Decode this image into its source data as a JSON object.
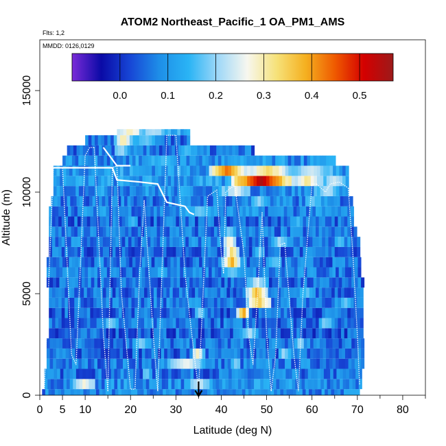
{
  "chart_data": {
    "type": "heatmap",
    "title": "ATOM2 Northeast_Pacific_1 OA_PM1_AMS",
    "flights_label": "Flts: 1,2",
    "dates_label": "MMDD: 0126,0129",
    "xlabel": "Latitude (deg N)",
    "ylabel": "Altitude (m)",
    "xlim": [
      0,
      85
    ],
    "ylim": [
      0,
      17500
    ],
    "x_ticks": [
      0,
      5,
      10,
      20,
      30,
      40,
      50,
      60,
      70,
      80
    ],
    "y_ticks": [
      0,
      5000,
      10000,
      15000
    ],
    "colorbar": {
      "range": [
        -0.1,
        0.57
      ],
      "ticks": [
        0.0,
        0.1,
        0.2,
        0.3,
        0.4,
        0.5
      ],
      "tick_labels": [
        "0.0",
        "0.1",
        "0.2",
        "0.3",
        "0.4",
        "0.5"
      ],
      "colors": [
        "#7a2bd8",
        "#0a0aa6",
        "#1747d6",
        "#1e8fe8",
        "#2ab4f5",
        "#9fd8f8",
        "#f7f7ef",
        "#f6e27a",
        "#f5b020",
        "#ef5a00",
        "#d40000",
        "#9c1a1a"
      ]
    },
    "marker_latitude": 35,
    "rows": [
      {
        "y0": 0,
        "y1": 300,
        "x0": 0.5,
        "x1": 70,
        "base": 0.08,
        "hot": []
      },
      {
        "y0": 300,
        "y1": 800,
        "x0": 1,
        "x1": 71,
        "base": 0.09,
        "hot": [
          [
            7,
            12,
            0.28
          ],
          [
            33,
            37,
            0.24
          ]
        ]
      },
      {
        "y0": 800,
        "y1": 1300,
        "x0": 1,
        "x1": 71,
        "base": 0.06,
        "hot": [
          [
            22,
            24,
            0.2
          ]
        ]
      },
      {
        "y0": 1300,
        "y1": 1800,
        "x0": 1.5,
        "x1": 71.5,
        "base": 0.07,
        "hot": [
          [
            28,
            36,
            0.27
          ],
          [
            42,
            44,
            0.2
          ]
        ]
      },
      {
        "y0": 1800,
        "y1": 2300,
        "x0": 1.5,
        "x1": 71.5,
        "base": 0.05,
        "hot": [
          [
            33,
            36,
            0.3
          ],
          [
            52,
            55,
            0.22
          ]
        ]
      },
      {
        "y0": 2300,
        "y1": 2800,
        "x0": 1.5,
        "x1": 71.5,
        "base": 0.06,
        "hot": [
          [
            20,
            24,
            0.2
          ],
          [
            56,
            58,
            0.22
          ]
        ]
      },
      {
        "y0": 2800,
        "y1": 3300,
        "x0": 2,
        "x1": 71,
        "base": 0.04,
        "hot": [
          [
            44,
            48,
            0.22
          ]
        ]
      },
      {
        "y0": 3300,
        "y1": 3800,
        "x0": 2,
        "x1": 71,
        "base": 0.06,
        "hot": [
          [
            14,
            17,
            0.2
          ],
          [
            61,
            64,
            0.2
          ]
        ]
      },
      {
        "y0": 3800,
        "y1": 4300,
        "x0": 2,
        "x1": 71,
        "base": 0.05,
        "hot": [
          [
            43,
            46,
            0.42
          ],
          [
            34,
            36,
            0.2
          ]
        ]
      },
      {
        "y0": 4300,
        "y1": 4800,
        "x0": 2,
        "x1": 71,
        "base": 0.07,
        "hot": [
          [
            45,
            51,
            0.36
          ],
          [
            66,
            68,
            0.18
          ]
        ]
      },
      {
        "y0": 4800,
        "y1": 5300,
        "x0": 2,
        "x1": 71,
        "base": 0.06,
        "hot": [
          [
            45,
            50,
            0.38
          ],
          [
            57,
            60,
            0.18
          ]
        ]
      },
      {
        "y0": 5300,
        "y1": 5800,
        "x0": 1.5,
        "x1": 71,
        "base": 0.05,
        "hot": [
          [
            45,
            50,
            0.24
          ]
        ]
      },
      {
        "y0": 5800,
        "y1": 6300,
        "x0": 1.5,
        "x1": 70.5,
        "base": 0.07,
        "hot": [
          [
            40,
            44,
            0.18
          ],
          [
            25,
            28,
            0.16
          ]
        ]
      },
      {
        "y0": 6300,
        "y1": 6800,
        "x0": 1.5,
        "x1": 70.5,
        "base": 0.06,
        "hot": [
          [
            40,
            44,
            0.4
          ],
          [
            50,
            53,
            0.18
          ]
        ]
      },
      {
        "y0": 6800,
        "y1": 7300,
        "x0": 2,
        "x1": 70,
        "base": 0.05,
        "hot": [
          [
            40,
            44,
            0.34
          ],
          [
            47,
            49,
            0.2
          ]
        ]
      },
      {
        "y0": 7300,
        "y1": 7800,
        "x0": 2,
        "x1": 70,
        "base": 0.07,
        "hot": [
          [
            40,
            43,
            0.3
          ],
          [
            51,
            54,
            0.22
          ],
          [
            65,
            67,
            0.18
          ]
        ]
      },
      {
        "y0": 7800,
        "y1": 8300,
        "x0": 2,
        "x1": 69.5,
        "base": 0.06,
        "hot": [
          [
            40,
            43,
            0.2
          ]
        ]
      },
      {
        "y0": 8300,
        "y1": 8800,
        "x0": 2,
        "x1": 69,
        "base": 0.05,
        "hot": [
          [
            19,
            21,
            0.16
          ],
          [
            55,
            58,
            0.16
          ]
        ]
      },
      {
        "y0": 8800,
        "y1": 9300,
        "x0": 2,
        "x1": 69,
        "base": 0.08,
        "hot": [
          [
            32,
            38,
            0.18
          ]
        ]
      },
      {
        "y0": 9300,
        "y1": 9800,
        "x0": 2.5,
        "x1": 68.5,
        "base": 0.07,
        "hot": [
          [
            46,
            50,
            0.2
          ],
          [
            58,
            62,
            0.18
          ]
        ]
      },
      {
        "y0": 9800,
        "y1": 10300,
        "x0": 3,
        "x1": 68,
        "base": 0.09,
        "hot": [
          [
            40,
            46,
            0.26
          ],
          [
            60,
            66,
            0.22
          ]
        ]
      },
      {
        "y0": 10300,
        "y1": 10800,
        "x0": 3,
        "x1": 67.5,
        "base": 0.1,
        "hot": [
          [
            42,
            55,
            0.55
          ],
          [
            55,
            62,
            0.32
          ],
          [
            62,
            67,
            0.24
          ]
        ]
      },
      {
        "y0": 10800,
        "y1": 11300,
        "x0": 3,
        "x1": 67.5,
        "base": 0.11,
        "hot": [
          [
            37,
            45,
            0.44
          ],
          [
            45,
            55,
            0.34
          ],
          [
            55,
            64,
            0.24
          ]
        ]
      },
      {
        "y0": 11300,
        "y1": 11800,
        "x0": 5,
        "x1": 65,
        "base": 0.09,
        "hot": [
          [
            24,
            30,
            0.16
          ]
        ]
      },
      {
        "y0": 11800,
        "y1": 12300,
        "x0": 6,
        "x1": 47,
        "base": 0.06,
        "hot": [
          [
            16,
            19,
            0.22
          ],
          [
            30,
            34,
            0.16
          ]
        ]
      },
      {
        "y0": 12300,
        "y1": 12800,
        "x0": 10,
        "x1": 33,
        "base": 0.05,
        "hot": [
          [
            16,
            20,
            0.32
          ],
          [
            20,
            26,
            0.18
          ]
        ]
      },
      {
        "y0": 12800,
        "y1": 13100,
        "x0": 17,
        "x1": 33,
        "base": 0.15,
        "hot": [
          [
            17,
            22,
            0.3
          ],
          [
            22,
            27,
            0.22
          ]
        ]
      }
    ],
    "profiles": [
      [
        [
          1,
          300
        ],
        [
          3,
          11200
        ],
        [
          5,
          11200
        ]
      ],
      [
        [
          5,
          11200
        ],
        [
          7,
          2000
        ],
        [
          8,
          1500
        ],
        [
          10,
          11800
        ],
        [
          11,
          12200
        ],
        [
          12,
          12200
        ]
      ],
      [
        [
          12,
          12200
        ],
        [
          14,
          3000
        ],
        [
          15,
          200
        ]
      ],
      [
        [
          15,
          200
        ],
        [
          16,
          11200
        ],
        [
          17,
          11300
        ]
      ],
      [
        [
          17,
          11300
        ],
        [
          18,
          5000
        ],
        [
          20,
          300
        ],
        [
          21,
          300
        ],
        [
          22,
          6000
        ],
        [
          23,
          9600
        ]
      ],
      [
        [
          23,
          9600
        ],
        [
          25,
          3000
        ],
        [
          26,
          200
        ],
        [
          28,
          12800
        ],
        [
          30,
          12800
        ]
      ],
      [
        [
          30,
          12800
        ],
        [
          32,
          6000
        ],
        [
          34,
          2000
        ],
        [
          35,
          300
        ]
      ],
      [
        [
          35,
          300
        ],
        [
          37,
          9800
        ],
        [
          39,
          10100
        ],
        [
          40,
          7000
        ],
        [
          40.5,
          6000
        ]
      ],
      [
        [
          40.5,
          6000
        ],
        [
          41,
          10000
        ],
        [
          42,
          10200
        ],
        [
          43,
          10300
        ]
      ],
      [
        [
          43,
          10300
        ],
        [
          45,
          7000
        ],
        [
          46,
          3000
        ],
        [
          47,
          1500
        ],
        [
          48,
          5000
        ],
        [
          49,
          9000
        ]
      ],
      [
        [
          49,
          9000
        ],
        [
          50,
          3000
        ],
        [
          51,
          200
        ],
        [
          52,
          2000
        ],
        [
          53,
          7400
        ],
        [
          54,
          7500
        ]
      ],
      [
        [
          54,
          7500
        ],
        [
          56,
          2000
        ],
        [
          57,
          200
        ],
        [
          58,
          5000
        ],
        [
          60,
          10400
        ],
        [
          61,
          10400
        ]
      ],
      [
        [
          61,
          10400
        ],
        [
          63,
          10000
        ],
        [
          64,
          10400
        ],
        [
          66,
          10500
        ],
        [
          68,
          10200
        ]
      ],
      [
        [
          68,
          10200
        ],
        [
          69,
          7000
        ],
        [
          70,
          3000
        ],
        [
          70.5,
          500
        ]
      ]
    ],
    "flight_track": [
      [
        3,
        11200
      ],
      [
        12,
        11200
      ],
      [
        16,
        11200
      ],
      [
        17,
        10600
      ],
      [
        22,
        10500
      ],
      [
        26,
        10400
      ],
      [
        28,
        9500
      ],
      [
        32,
        9300
      ],
      [
        33,
        9000
      ],
      [
        34,
        8900
      ]
    ],
    "upper_track": [
      [
        14,
        12200
      ],
      [
        17,
        11300
      ],
      [
        20,
        11300
      ]
    ]
  }
}
